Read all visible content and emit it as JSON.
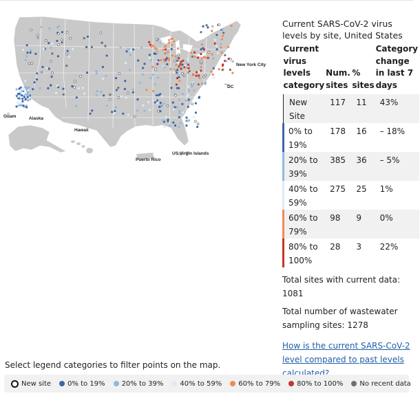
{
  "colors": {
    "new_site": "#ffffff",
    "p0_19": "#3d67a9",
    "p20_39": "#92b8dc",
    "p40_59": "#dcebf7",
    "p60_79": "#ee8a55",
    "p80_100": "#c4352b",
    "no_recent": "#707070"
  },
  "map": {
    "labels": {
      "guam": "Guam",
      "alaska": "Alaska",
      "hawaii": "Hawaii",
      "puerto_rico": "Puerto Rico",
      "usvi": "US Virgin Islands",
      "new_york_city": "New York City",
      "dc": "DC"
    }
  },
  "panel": {
    "title": "Current SARS-CoV-2 virus levels by site, United States",
    "headers": {
      "category": "Current virus levels category",
      "num_sites": "Num. sites",
      "pct_sites": "% sites",
      "change": "Category change in last 7 days"
    },
    "rows": [
      {
        "category": "New Site",
        "num_sites": "117",
        "pct_sites": "11",
        "change": "43%",
        "color": "#ffffff"
      },
      {
        "category": "0% to 19%",
        "num_sites": "178",
        "pct_sites": "16",
        "change": "– 18%",
        "color": "#3d67a9"
      },
      {
        "category": "20% to 39%",
        "num_sites": "385",
        "pct_sites": "36",
        "change": "– 5%",
        "color": "#92b8dc"
      },
      {
        "category": "40% to 59%",
        "num_sites": "275",
        "pct_sites": "25",
        "change": "1%",
        "color": "#dcebf7"
      },
      {
        "category": "60% to 79%",
        "num_sites": "98",
        "pct_sites": "9",
        "change": "0%",
        "color": "#ee8a55"
      },
      {
        "category": "80% to 100%",
        "num_sites": "28",
        "pct_sites": "3",
        "change": "22%",
        "color": "#c4352b"
      }
    ],
    "total_current": "Total sites with current data: 1081",
    "total_sampling": "Total number of wastewater sampling sites: 1278",
    "link_text": "How is the current SARS-CoV-2 level compared to past levels calculated?"
  },
  "legend": {
    "prompt": "Select legend categories to filter points on the map.",
    "items": [
      {
        "label": "New site"
      },
      {
        "label": "0% to 19%"
      },
      {
        "label": "20% to 39%"
      },
      {
        "label": "40% to 59%"
      },
      {
        "label": "60% to 79%"
      },
      {
        "label": "80% to 100%"
      },
      {
        "label": "No recent data"
      }
    ]
  }
}
